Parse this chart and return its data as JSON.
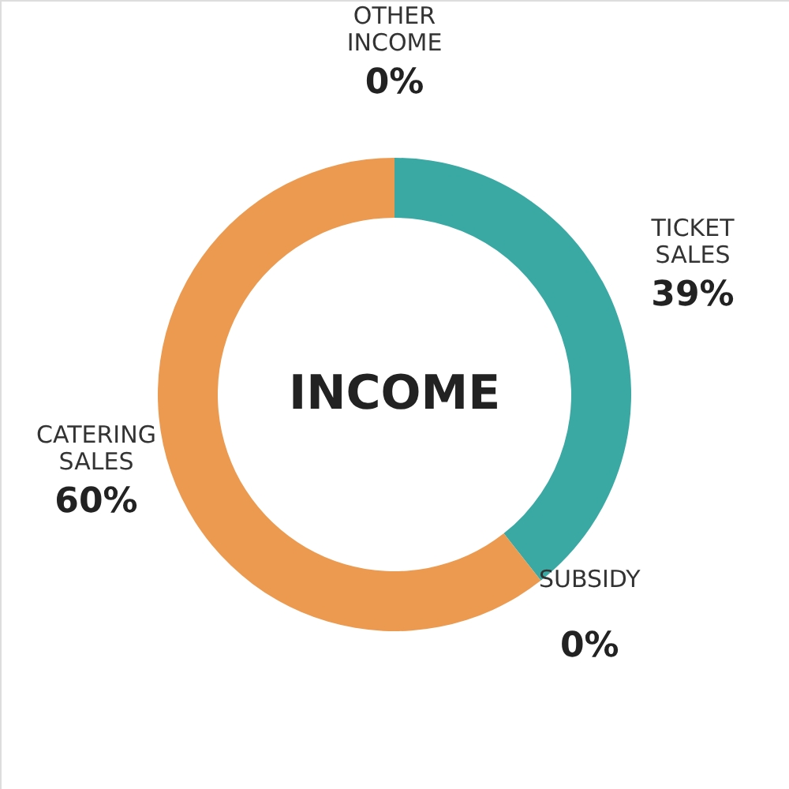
{
  "chart_data": {
    "type": "donut",
    "title": "INCOME",
    "categories": [
      "TICKET SALES",
      "SUBSIDY",
      "CATERING SALES",
      "OTHER INCOME"
    ],
    "values": [
      39,
      0,
      60,
      0
    ],
    "value_labels": [
      "39%",
      "0%",
      "60%",
      "0%"
    ],
    "colors": [
      "#3aa9a3",
      "#9e9e9e",
      "#ec9a50",
      "#9e9e9e"
    ]
  }
}
